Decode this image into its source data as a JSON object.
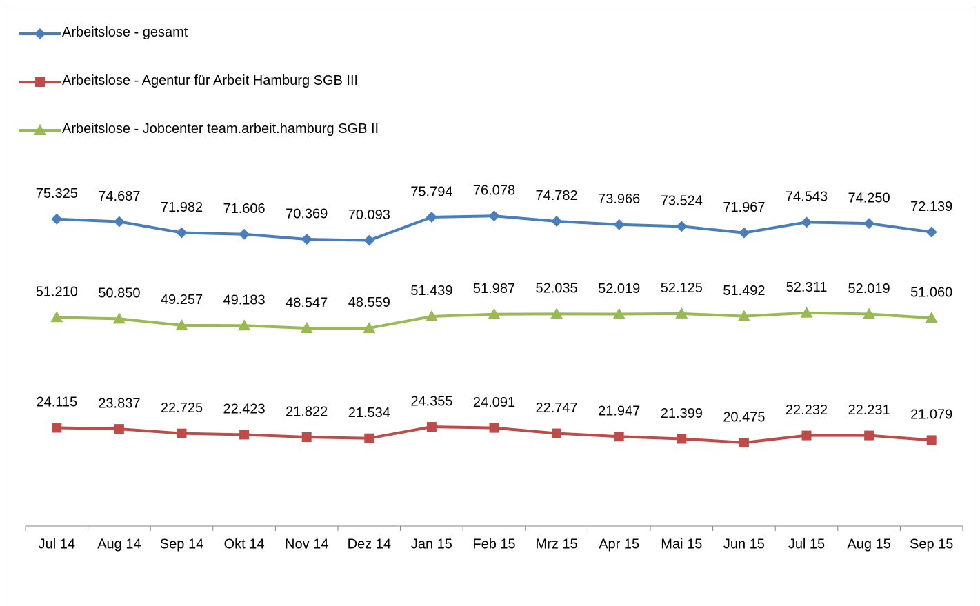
{
  "chart_data": {
    "type": "line",
    "categories": [
      "Jul 14",
      "Aug 14",
      "Sep 14",
      "Okt 14",
      "Nov 14",
      "Dez 14",
      "Jan 15",
      "Feb 15",
      "Mrz 15",
      "Apr 15",
      "Mai 15",
      "Jun 15",
      "Jul 15",
      "Aug 15",
      "Sep 15"
    ],
    "ylim": [
      0,
      90000
    ],
    "legend": "top-left",
    "series": [
      {
        "name": "Arbeitslose - gesamt",
        "color": "#4a7ebb",
        "marker": "diamond",
        "values": [
          75325,
          74687,
          71982,
          71606,
          70369,
          70093,
          75794,
          76078,
          74782,
          73966,
          73524,
          71967,
          74543,
          74250,
          72139
        ],
        "value_labels": [
          "75.325",
          "74.687",
          "71.982",
          "71.606",
          "70.369",
          "70.093",
          "75.794",
          "76.078",
          "74.782",
          "73.966",
          "73.524",
          "71.967",
          "74.543",
          "74.250",
          "72.139"
        ]
      },
      {
        "name": "Arbeitslose - Agentur für Arbeit Hamburg SGB III",
        "color": "#be4b48",
        "marker": "square",
        "values": [
          24115,
          23837,
          22725,
          22423,
          21822,
          21534,
          24355,
          24091,
          22747,
          21947,
          21399,
          20475,
          22232,
          22231,
          21079
        ],
        "value_labels": [
          "24.115",
          "23.837",
          "22.725",
          "22.423",
          "21.822",
          "21.534",
          "24.355",
          "24.091",
          "22.747",
          "21.947",
          "21.399",
          "20.475",
          "22.232",
          "22.231",
          "21.079"
        ]
      },
      {
        "name": "Arbeitslose - Jobcenter team.arbeit.hamburg SGB II",
        "color": "#98b954",
        "marker": "triangle",
        "values": [
          51210,
          50850,
          49257,
          49183,
          48547,
          48559,
          51439,
          51987,
          52035,
          52019,
          52125,
          51492,
          52311,
          52019,
          51060
        ],
        "value_labels": [
          "51.210",
          "50.850",
          "49.257",
          "49.183",
          "48.547",
          "48.559",
          "51.439",
          "51.987",
          "52.035",
          "52.019",
          "52.125",
          "51.492",
          "52.311",
          "52.019",
          "51.060"
        ]
      }
    ]
  }
}
